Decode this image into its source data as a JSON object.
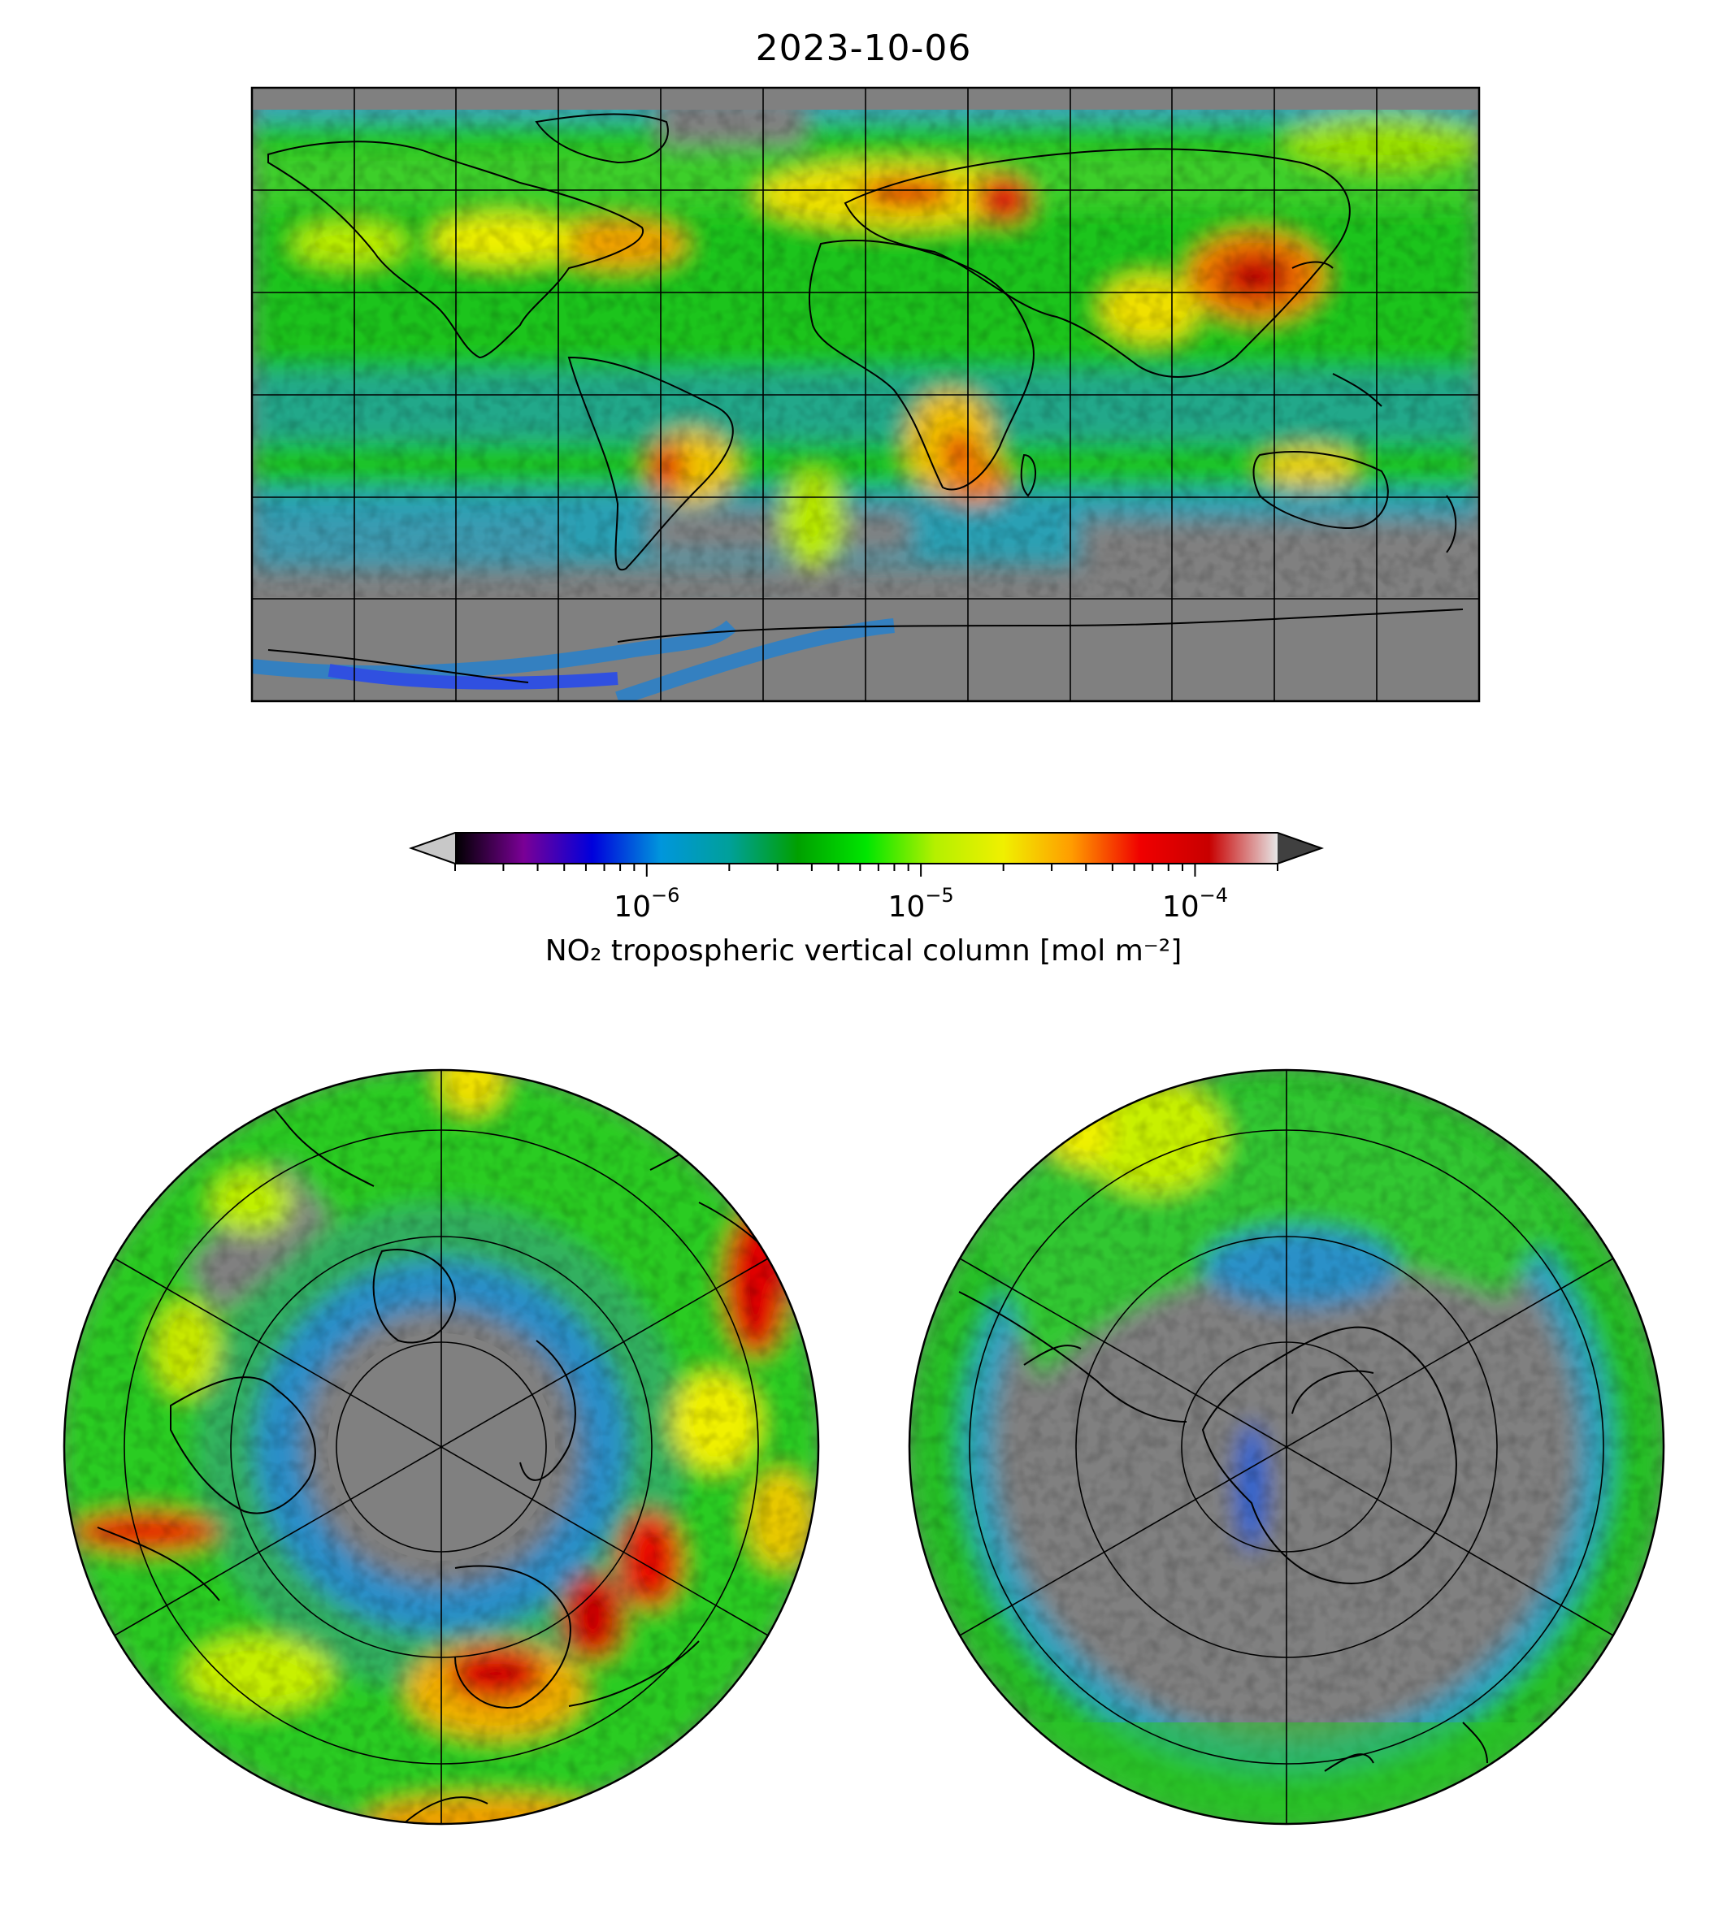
{
  "title": "2023-10-06",
  "colorbar": {
    "label": "NO₂ tropospheric vertical column [mol m⁻²]",
    "scale": "log",
    "ticks": [
      {
        "base": "10",
        "exp": "−6",
        "value": 1e-06
      },
      {
        "base": "10",
        "exp": "−5",
        "value": 1e-05
      },
      {
        "base": "10",
        "exp": "−4",
        "value": 0.0001
      }
    ],
    "range": [
      2e-07,
      0.0002
    ],
    "extend": "both",
    "colors": {
      "under": "#c8c8c8",
      "over": "#404040",
      "stops": [
        "#000000",
        "#7a0096",
        "#0000dc",
        "#0096dc",
        "#00a09a",
        "#00a000",
        "#00e600",
        "#b4f000",
        "#f0f000",
        "#ff9b00",
        "#f00000",
        "#c80000",
        "#e6e6e6"
      ]
    }
  },
  "maps": {
    "global": {
      "projection": "plate-carree",
      "no_data_color": "#808080"
    },
    "north_polar": {
      "projection": "north-polar-stereographic",
      "no_data_color": "#808080"
    },
    "south_polar": {
      "projection": "south-polar-stereographic",
      "no_data_color": "#808080"
    }
  }
}
